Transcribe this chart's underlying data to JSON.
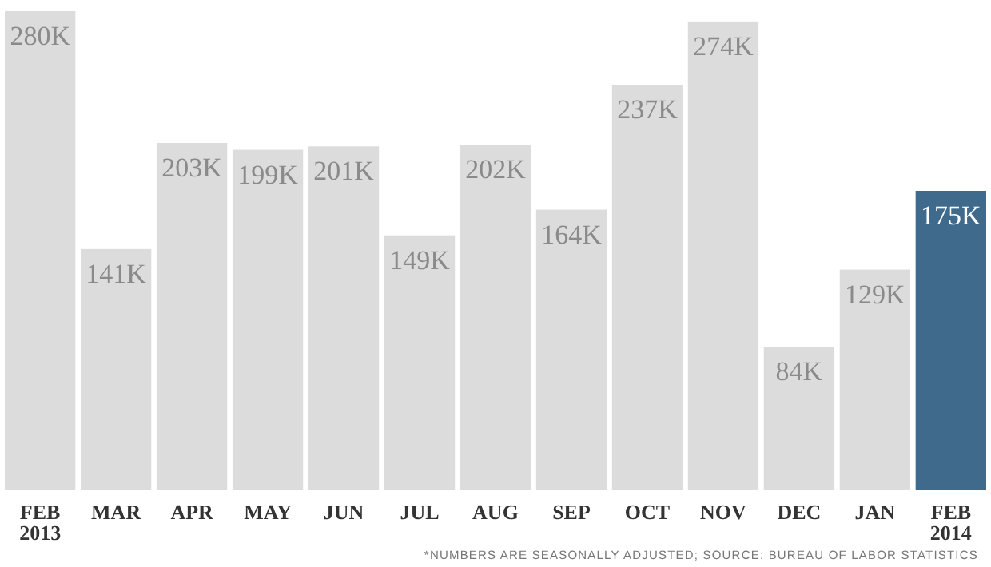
{
  "chart_data": {
    "type": "bar",
    "categories": [
      "FEB\n2013",
      "MAR",
      "APR",
      "MAY",
      "JUN",
      "JUL",
      "AUG",
      "SEP",
      "OCT",
      "NOV",
      "DEC",
      "JAN",
      "FEB\n2014"
    ],
    "values": [
      280,
      141,
      203,
      199,
      201,
      149,
      202,
      164,
      237,
      274,
      84,
      129,
      175
    ],
    "value_labels": [
      "280K",
      "141K",
      "203K",
      "199K",
      "201K",
      "149K",
      "202K",
      "164K",
      "237K",
      "274K",
      "84K",
      "129K",
      "175K"
    ],
    "colors": [
      "#dcdcdc",
      "#dcdcdc",
      "#dcdcdc",
      "#dcdcdc",
      "#dcdcdc",
      "#dcdcdc",
      "#dcdcdc",
      "#dcdcdc",
      "#dcdcdc",
      "#dcdcdc",
      "#dcdcdc",
      "#dcdcdc",
      "#3f6a8c"
    ],
    "annotations": [
      "*NUMBERS ARE SEASONALLY ADJUSTED; SOURCE: BUREAU OF LABOR STATISTICS"
    ]
  }
}
